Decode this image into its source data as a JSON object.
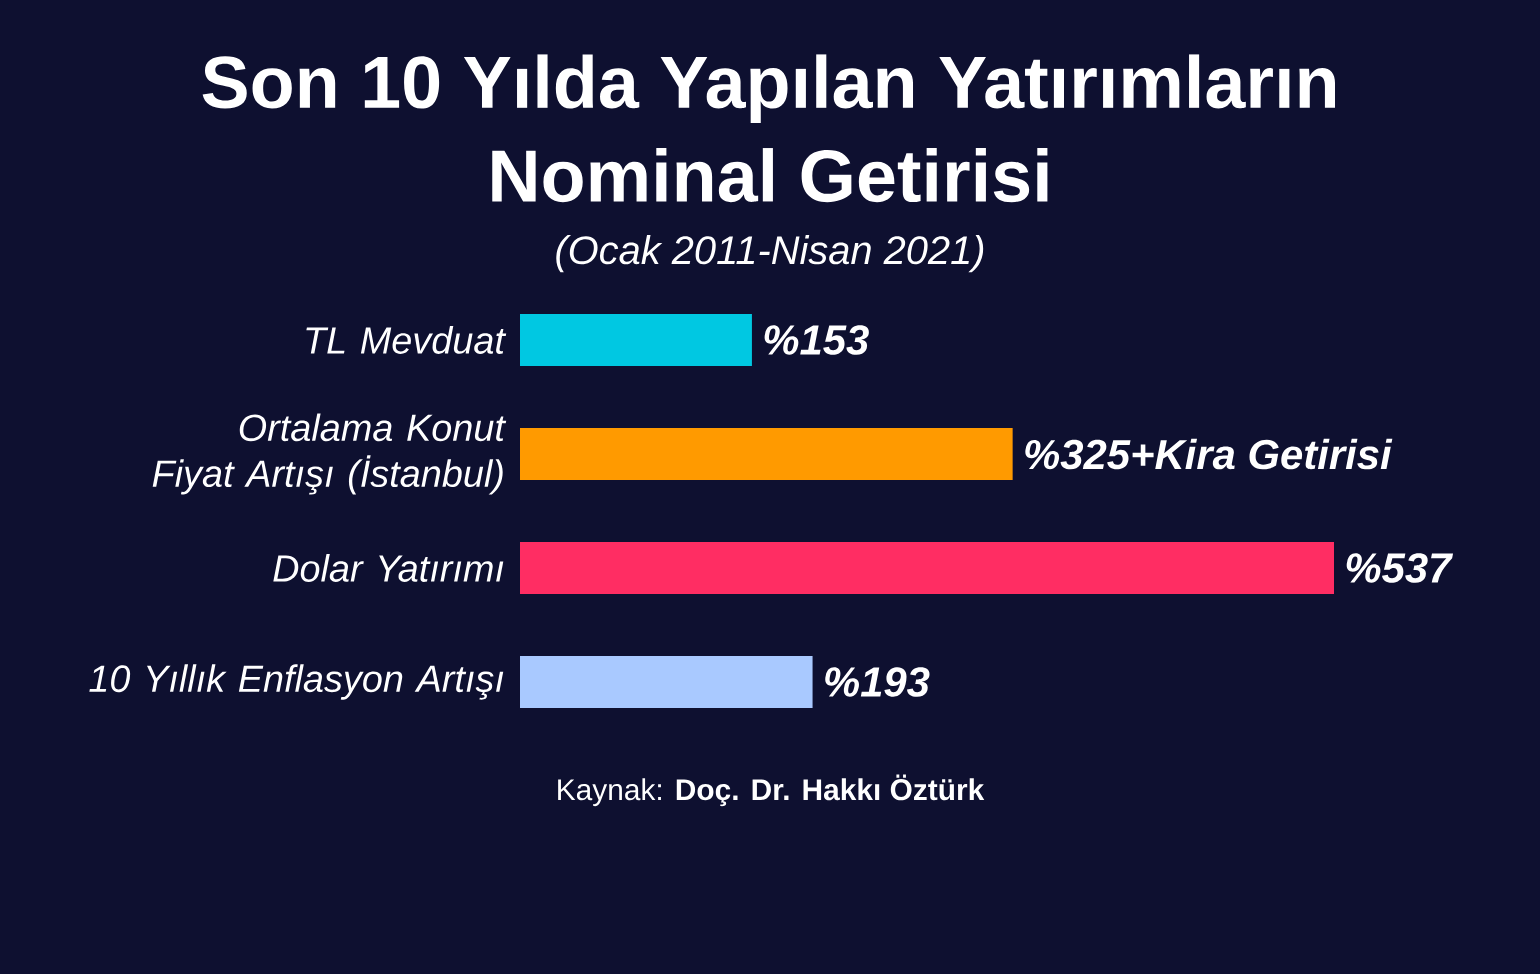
{
  "chart_data": {
    "type": "bar",
    "orientation": "horizontal",
    "title": "Son 10 Yılda Yapılan Yatırımların Nominal Getirisi",
    "subtitle": "(Ocak 2011-Nisan 2021)",
    "categories": [
      "TL Mevduat",
      "Ortalama Konut Fiyat Artışı (İstanbul)",
      "Dolar Yatırımı",
      "10 Yıllık Enflasyon Artışı"
    ],
    "values": [
      153,
      325,
      537,
      193
    ],
    "colors": [
      "#00c8e2",
      "#ff9a00",
      "#ff2d63",
      "#a9c9ff"
    ],
    "value_labels": [
      "%153",
      "%325+Kira Getirisi",
      "%537",
      "%193"
    ],
    "annotations": [
      "Kaynak: **Doç. Dr. Hakkı Öztürk**"
    ]
  }
}
